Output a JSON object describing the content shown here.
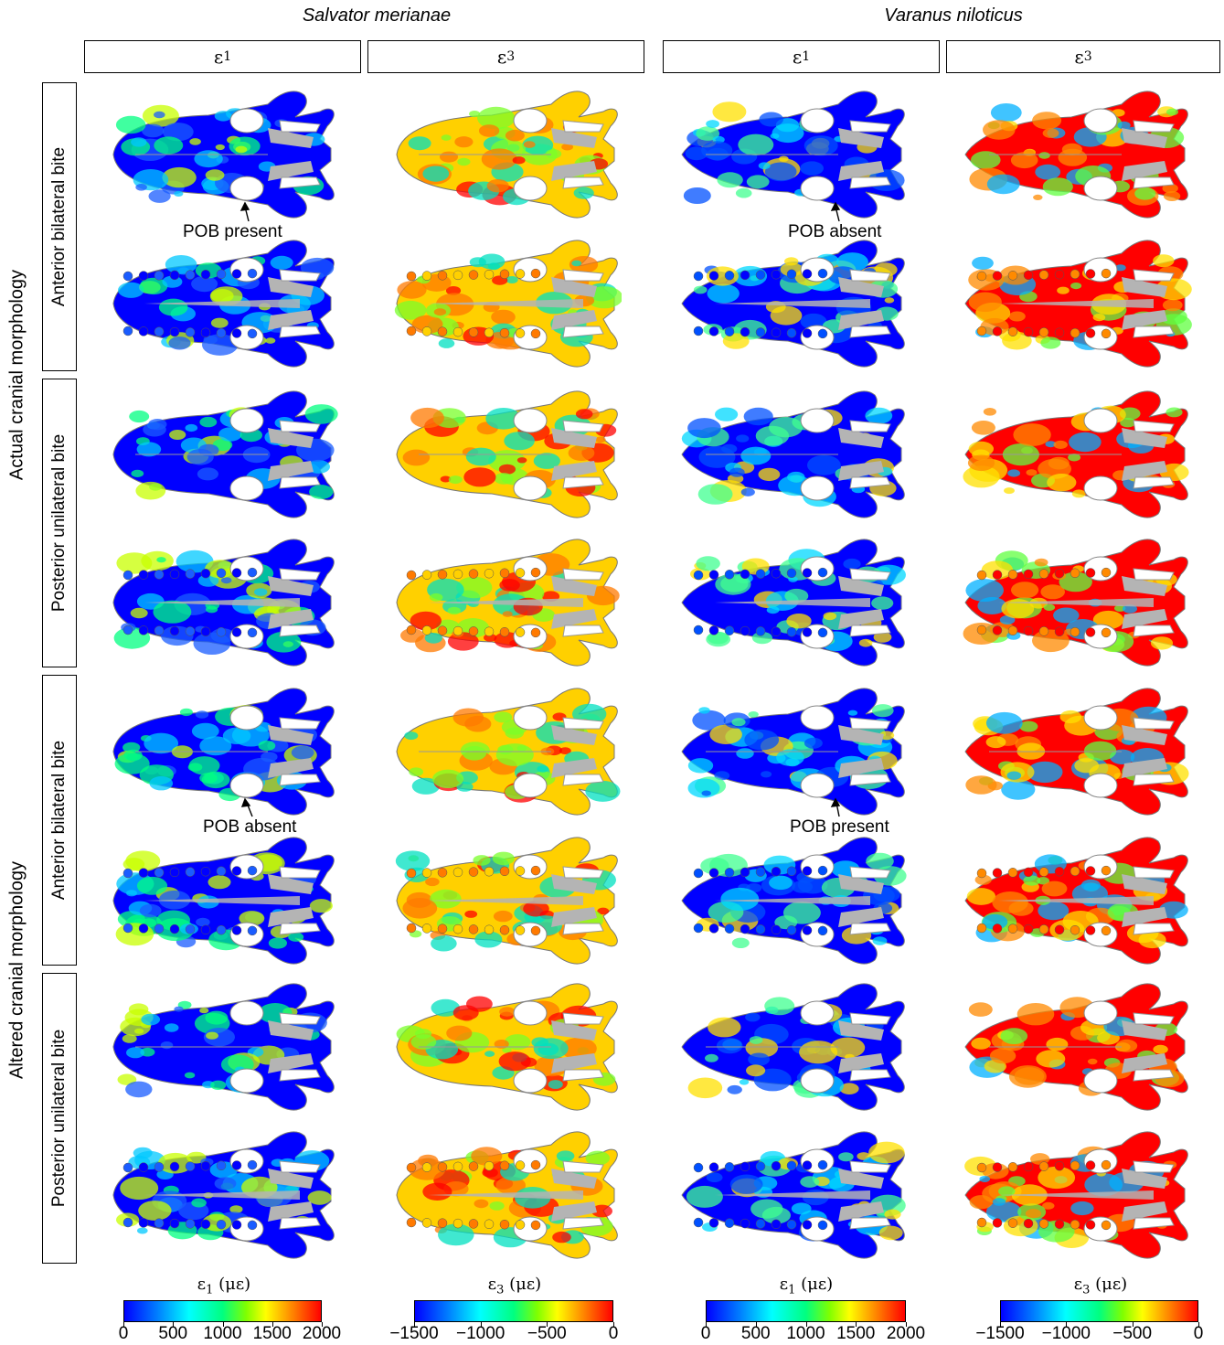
{
  "species": [
    "Salvator merianae",
    "Varanus niloticus"
  ],
  "column_headers": [
    {
      "sym": "ε",
      "sub": "1"
    },
    {
      "sym": "ε",
      "sub": "3"
    },
    {
      "sym": "ε",
      "sub": "1"
    },
    {
      "sym": "ε",
      "sub": "3"
    }
  ],
  "row_groups": [
    "Actual cranial morphology",
    "Altered cranial morphology"
  ],
  "row_labels": [
    "Anterior bilateral bite",
    "Posterior unilateral bite",
    "Anterior bilateral bite",
    "Posterior unilateral bite"
  ],
  "annotations": [
    "POB present",
    "POB absent",
    "POB absent",
    "POB present"
  ],
  "colorbars": [
    {
      "title_sym": "ε",
      "title_sub": "1",
      "units": "(με)",
      "ticks": [
        "0",
        "500",
        "1000",
        "1500",
        "2000"
      ]
    },
    {
      "title_sym": "ε",
      "title_sub": "3",
      "units": "(με)",
      "ticks": [
        "−1500",
        "−1000",
        "−500",
        "0"
      ]
    },
    {
      "title_sym": "ε",
      "title_sub": "1",
      "units": "(με)",
      "ticks": [
        "0",
        "500",
        "1000",
        "1500",
        "2000"
      ]
    },
    {
      "title_sym": "ε",
      "title_sub": "3",
      "units": "(με)",
      "ticks": [
        "−1500",
        "−1000",
        "−500",
        "0"
      ]
    }
  ],
  "colors": {
    "scale_low": "#0000ff",
    "scale_mid": "#00ff80",
    "scale_high": "#ff0000",
    "bone_gray": "#b4b4b4"
  }
}
